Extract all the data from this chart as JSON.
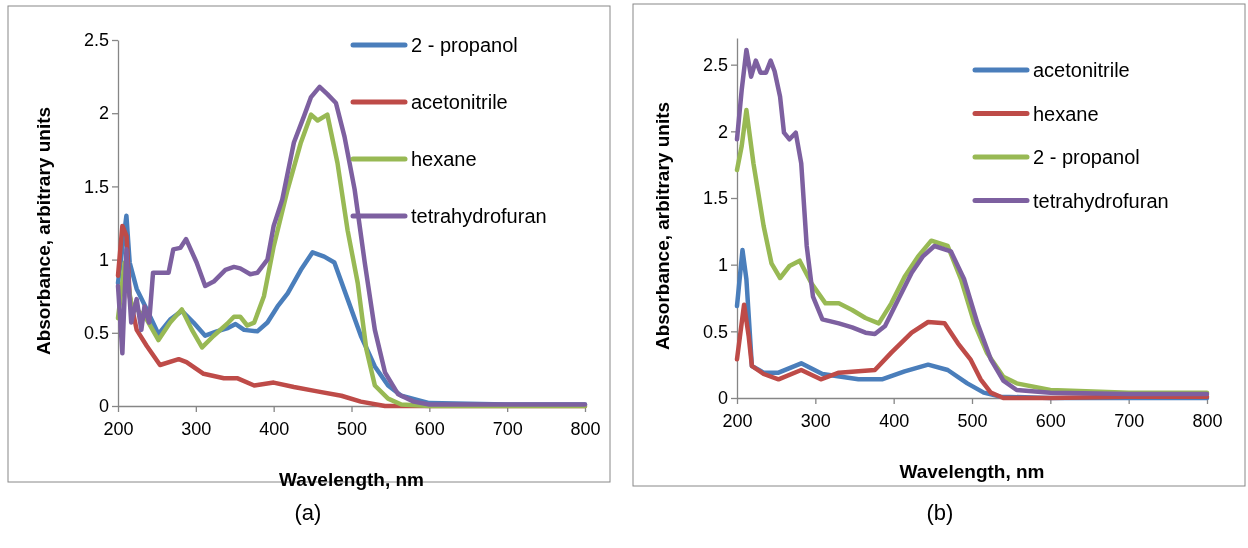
{
  "chart_data": [
    {
      "type": "line",
      "xlabel": "Wavelength, nm",
      "ylabel": "Absorbance, arbitrary units",
      "annotations": [
        "(a)"
      ],
      "xlim": [
        200,
        800
      ],
      "xticks": [
        200,
        300,
        400,
        500,
        600,
        700,
        800
      ],
      "ylim": [
        0,
        2.5
      ],
      "yticks": [
        0,
        0.5,
        1,
        1.5,
        2,
        2.5
      ],
      "legend": "top right",
      "line_style": "solid",
      "marker": "none",
      "series": [
        {
          "name": "2 - propanol",
          "color": "#4a7ebb",
          "x": [
            200,
            210.8,
            215,
            224,
            237,
            252,
            267,
            282,
            297,
            312,
            327,
            340,
            351,
            362,
            379,
            392,
            405,
            418,
            435,
            450,
            465,
            478,
            495,
            512,
            530,
            547,
            564,
            600,
            700,
            800
          ],
          "values": [
            0.84,
            1.3,
            0.98,
            0.8,
            0.66,
            0.49,
            0.59,
            0.65,
            0.57,
            0.48,
            0.51,
            0.53,
            0.56,
            0.52,
            0.51,
            0.57,
            0.68,
            0.77,
            0.93,
            1.05,
            1.02,
            0.98,
            0.73,
            0.48,
            0.27,
            0.14,
            0.07,
            0.02,
            0.01,
            0.01
          ]
        },
        {
          "name": "acetonitrile",
          "color": "#be4b48",
          "x": [
            200,
            205.6,
            211,
            215,
            224,
            237,
            254,
            278,
            288,
            310,
            336,
            353,
            375,
            400,
            426,
            456,
            487,
            512,
            543,
            600,
            700,
            800
          ],
          "values": [
            0.89,
            1.23,
            1.16,
            0.75,
            0.52,
            0.41,
            0.28,
            0.32,
            0.3,
            0.22,
            0.19,
            0.19,
            0.14,
            0.16,
            0.13,
            0.1,
            0.07,
            0.03,
            0,
            0,
            0,
            0
          ]
        },
        {
          "name": "hexane",
          "color": "#98b954",
          "x": [
            200,
            208.6,
            217,
            237,
            252,
            267,
            282,
            295,
            308,
            323,
            340,
            349,
            357,
            366,
            375,
            387.5,
            400,
            418,
            435,
            448,
            456.5,
            469,
            482,
            495,
            508,
            519,
            530,
            547,
            564,
            600,
            700,
            800
          ],
          "values": [
            0.6,
            0.98,
            0.7,
            0.59,
            0.45,
            0.57,
            0.66,
            0.52,
            0.4,
            0.48,
            0.56,
            0.61,
            0.61,
            0.55,
            0.57,
            0.75,
            1.09,
            1.48,
            1.8,
            1.99,
            1.95,
            1.99,
            1.66,
            1.2,
            0.84,
            0.39,
            0.14,
            0.05,
            0.01,
            0,
            0,
            0
          ]
        },
        {
          "name": "tetrahydrofuran",
          "color": "#7d60a0",
          "x": [
            200,
            205.6,
            210.8,
            217,
            224,
            230,
            234,
            240,
            245,
            254,
            265,
            271,
            280,
            287.5,
            301,
            312,
            323,
            338,
            349,
            357,
            370,
            379,
            392,
            400,
            411,
            426,
            439,
            448,
            459,
            469,
            480,
            491,
            504,
            517,
            530,
            543,
            560,
            580,
            600,
            700,
            800
          ],
          "values": [
            0.82,
            0.36,
            1.07,
            0.57,
            0.73,
            0.52,
            0.68,
            0.57,
            0.91,
            0.91,
            0.91,
            1.07,
            1.08,
            1.14,
            0.98,
            0.82,
            0.85,
            0.93,
            0.95,
            0.94,
            0.9,
            0.91,
            1,
            1.23,
            1.41,
            1.8,
            1.98,
            2.11,
            2.18,
            2.13,
            2.07,
            1.84,
            1.48,
            0.98,
            0.52,
            0.23,
            0.08,
            0.03,
            0.01,
            0.01,
            0.01
          ]
        }
      ]
    },
    {
      "type": "line",
      "xlabel": "Wavelength, nm",
      "ylabel": "Absorbance, arbitrary units",
      "annotations": [
        "(b)"
      ],
      "xlim": [
        200,
        800
      ],
      "xticks": [
        200,
        300,
        400,
        500,
        600,
        700,
        800
      ],
      "ylim": [
        0,
        2.7
      ],
      "yticks": [
        0,
        0.5,
        1,
        1.5,
        2,
        2.5
      ],
      "legend": "top right",
      "line_style": "solid",
      "marker": "none",
      "series": [
        {
          "name": "acetonitrile",
          "color": "#4a7ebb",
          "x": [
            200,
            207,
            212,
            219,
            234,
            253,
            282,
            309,
            355,
            385,
            414,
            444,
            469,
            494,
            515,
            536,
            600,
            700,
            800
          ],
          "values": [
            0.69,
            1.11,
            0.89,
            0.24,
            0.19,
            0.19,
            0.26,
            0.18,
            0.14,
            0.14,
            0.2,
            0.25,
            0.21,
            0.11,
            0.04,
            0.01,
            0,
            0,
            0
          ]
        },
        {
          "name": "hexane",
          "color": "#be4b48",
          "x": [
            200,
            209,
            215,
            219,
            234,
            253,
            282,
            307,
            330,
            355,
            376,
            397,
            423,
            444,
            465,
            482,
            498,
            511,
            524,
            540,
            600,
            700,
            800
          ],
          "values": [
            0.29,
            0.7,
            0.46,
            0.24,
            0.18,
            0.14,
            0.21,
            0.14,
            0.19,
            0.2,
            0.21,
            0.34,
            0.49,
            0.57,
            0.56,
            0.41,
            0.29,
            0.14,
            0.04,
            0,
            0,
            0.01,
            0.01
          ]
        },
        {
          "name": "2 - propanol",
          "color": "#98b954",
          "x": [
            200,
            206,
            212,
            221,
            234,
            244,
            255,
            267,
            280,
            295,
            313,
            330,
            347,
            364,
            381,
            397,
            414,
            431,
            448,
            469,
            486,
            503,
            519,
            540,
            557,
            600,
            700,
            800
          ],
          "values": [
            1.71,
            1.89,
            2.16,
            1.76,
            1.29,
            1.01,
            0.9,
            0.99,
            1.03,
            0.86,
            0.71,
            0.71,
            0.66,
            0.6,
            0.56,
            0.71,
            0.91,
            1.06,
            1.18,
            1.14,
            0.89,
            0.56,
            0.34,
            0.16,
            0.11,
            0.06,
            0.04,
            0.04
          ]
        },
        {
          "name": "tetrahydrofuran",
          "color": "#7d60a0",
          "x": [
            200,
            206,
            212,
            218,
            224,
            230,
            237,
            243,
            248,
            255,
            260,
            267,
            275,
            282,
            289,
            297,
            309,
            330,
            347,
            364,
            376,
            389,
            406,
            423,
            437,
            452,
            473,
            490,
            507,
            524,
            540,
            557,
            600,
            700,
            800
          ],
          "values": [
            1.94,
            2.31,
            2.61,
            2.41,
            2.53,
            2.44,
            2.44,
            2.53,
            2.45,
            2.26,
            1.99,
            1.94,
            1.99,
            1.76,
            1.14,
            0.76,
            0.59,
            0.56,
            0.53,
            0.49,
            0.48,
            0.54,
            0.74,
            0.94,
            1.06,
            1.14,
            1.1,
            0.89,
            0.56,
            0.29,
            0.13,
            0.06,
            0.04,
            0.03,
            0.03
          ]
        }
      ]
    }
  ]
}
